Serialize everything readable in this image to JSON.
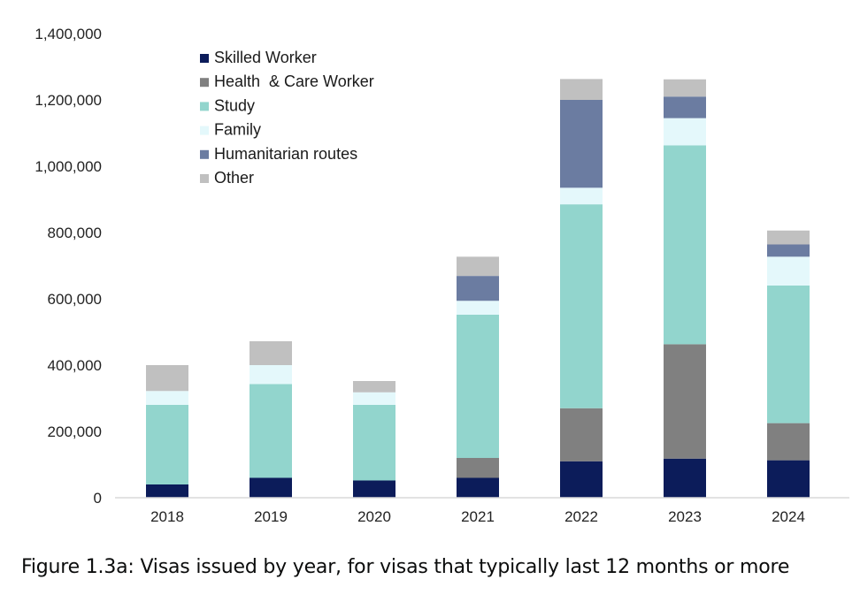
{
  "chart_data": {
    "type": "bar",
    "stacked": true,
    "categories": [
      "2018",
      "2019",
      "2020",
      "2021",
      "2022",
      "2023",
      "2024"
    ],
    "series": [
      {
        "name": "Skilled Worker",
        "color": "#0c1c5a",
        "values": [
          40000,
          60000,
          52000,
          60000,
          110000,
          118000,
          113000
        ]
      },
      {
        "name": "Health  & Care Worker",
        "color": "#808080",
        "values": [
          0,
          0,
          0,
          60000,
          160000,
          345000,
          112000
        ]
      },
      {
        "name": "Study",
        "color": "#92d5cd",
        "values": [
          240000,
          283000,
          228000,
          432000,
          615000,
          600000,
          415000
        ]
      },
      {
        "name": "Family",
        "color": "#e4f8fb",
        "values": [
          42000,
          57000,
          38000,
          42000,
          50000,
          82000,
          87000
        ]
      },
      {
        "name": "Humanitarian routes",
        "color": "#6b7ca1",
        "values": [
          0,
          0,
          0,
          75000,
          265000,
          65000,
          37000
        ]
      },
      {
        "name": "Other",
        "color": "#c0c0c0",
        "values": [
          78000,
          72000,
          34000,
          58000,
          63000,
          52000,
          42000
        ]
      }
    ],
    "ylim": [
      0,
      1400000
    ],
    "yticks": [
      0,
      200000,
      400000,
      600000,
      800000,
      1000000,
      1200000,
      1400000
    ],
    "ytick_labels": [
      "0",
      "200,000",
      "400,000",
      "600,000",
      "800,000",
      "1,000,000",
      "1,200,000",
      "1,400,000"
    ],
    "grid": false,
    "legend_position": "top-left"
  },
  "caption": "Figure 1.3a: Visas issued by year, for visas that typically last 12 months or more"
}
